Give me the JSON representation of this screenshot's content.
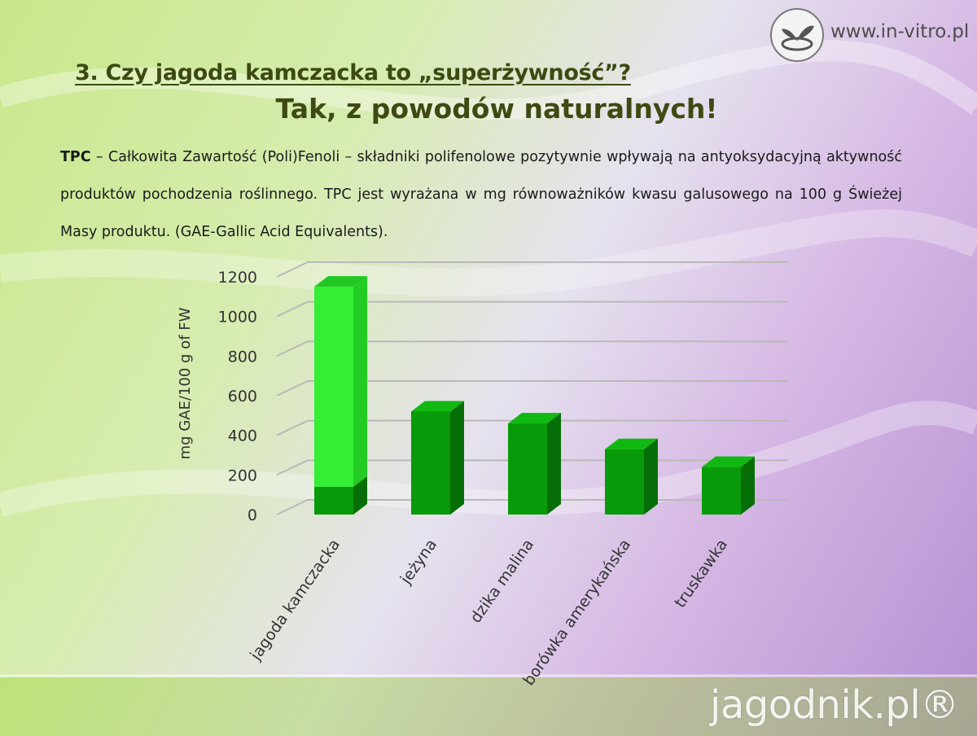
{
  "header": {
    "site_url": "www.in-vitro.pl",
    "section_title": "3. Czy jagoda kamczacka to „superżywność”?",
    "subtitle": "Tak, z powodów naturalnych!"
  },
  "paragraph": {
    "term": "TPC",
    "text": " – Całkowita Zawartość (Poli)Fenoli  – składniki polifenolowe pozytywnie wpływają na antyoksydacyjną aktywność produktów pochodzenia roślinnego. TPC jest wyrażana w mg  równoważników kwasu galusowego na 100 g Świeżej Masy produktu. (GAE-Gallic Acid Equivalents)."
  },
  "chart_data": {
    "type": "bar",
    "categories": [
      "jagoda kamczacka",
      "jeżyna",
      "dzika malina",
      "borówka amerykańska",
      "truskawka"
    ],
    "values": [
      1150,
      520,
      460,
      330,
      240
    ],
    "lower_segment_first_bar": 140,
    "ylabel": "mg GAE/100 g of FW",
    "yticks": [
      "0",
      "200",
      "400",
      "600",
      "800",
      "1000",
      "1200"
    ],
    "ylim": [
      0,
      1200
    ],
    "grid": true,
    "colors": {
      "bar": "#089a08",
      "highlight": "#33ee33",
      "bar_side": "#066e06",
      "bar_top": "#12b812"
    }
  },
  "footer": {
    "watermark": "jagodnik.pl®"
  }
}
